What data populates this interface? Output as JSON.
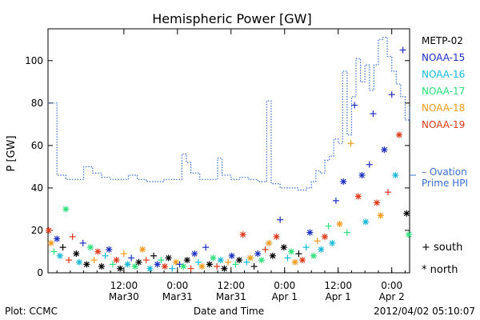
{
  "chart_data": {
    "type": "scatter",
    "title": "Hemispheric Power [GW]",
    "ylabel": "P [GW]",
    "xlabel": "Date and Time",
    "ylim": [
      0,
      115
    ],
    "yticks": [
      0,
      20,
      40,
      60,
      80,
      100
    ],
    "xlim": [
      "2012-03-29T19:00",
      "2012-04-02T04:00"
    ],
    "xticks": [
      {
        "t": "2012-03-30T12:00",
        "line1": "12:00",
        "line2": "Mar30"
      },
      {
        "t": "2012-03-31T00:00",
        "line1": "0:00",
        "line2": "Mar31"
      },
      {
        "t": "2012-03-31T12:00",
        "line1": "12:00",
        "line2": "Mar31"
      },
      {
        "t": "2012-04-01T00:00",
        "line1": "0:00",
        "line2": "Apr 1"
      },
      {
        "t": "2012-04-01T12:00",
        "line1": "12:00",
        "line2": "Apr 1"
      },
      {
        "t": "2012-04-02T00:00",
        "line1": "0:00",
        "line2": "Apr 2"
      }
    ],
    "legend": [
      {
        "name": "METP-02",
        "color": "#000000"
      },
      {
        "name": "NOAA-15",
        "color": "#1c2fbf"
      },
      {
        "name": "NOAA-16",
        "color": "#16b9d6"
      },
      {
        "name": "NOAA-17",
        "color": "#2fe07a"
      },
      {
        "name": "NOAA-18",
        "color": "#f29a1a"
      },
      {
        "name": "NOAA-19",
        "color": "#e0391a"
      }
    ],
    "ovation_label": [
      "– Ovation",
      "Prime HPI"
    ],
    "ovation_color": "#3a6fd0",
    "marker_legend": [
      {
        "symbol": "+",
        "label": "south"
      },
      {
        "symbol": "*",
        "label": "north"
      }
    ],
    "ovation_series": [
      [
        "2012-03-29T19:00",
        80
      ],
      [
        "2012-03-29T20:00",
        80
      ],
      [
        "2012-03-29T21:00",
        46
      ],
      [
        "2012-03-29T23:00",
        44
      ],
      [
        "2012-03-30T02:00",
        44
      ],
      [
        "2012-03-30T03:00",
        50
      ],
      [
        "2012-03-30T05:00",
        47
      ],
      [
        "2012-03-30T07:00",
        45
      ],
      [
        "2012-03-30T09:00",
        44
      ],
      [
        "2012-03-30T11:00",
        44
      ],
      [
        "2012-03-30T13:00",
        46
      ],
      [
        "2012-03-30T15:00",
        44
      ],
      [
        "2012-03-30T17:00",
        43
      ],
      [
        "2012-03-30T19:00",
        43
      ],
      [
        "2012-03-30T21:00",
        44
      ],
      [
        "2012-03-31T00:00",
        44
      ],
      [
        "2012-03-31T01:00",
        56
      ],
      [
        "2012-03-31T02:00",
        52
      ],
      [
        "2012-03-31T03:00",
        47
      ],
      [
        "2012-03-31T05:00",
        44
      ],
      [
        "2012-03-31T07:00",
        44
      ],
      [
        "2012-03-31T09:00",
        54
      ],
      [
        "2012-03-31T10:00",
        46
      ],
      [
        "2012-03-31T12:00",
        44
      ],
      [
        "2012-03-31T14:00",
        45
      ],
      [
        "2012-03-31T16:00",
        44
      ],
      [
        "2012-03-31T18:00",
        43
      ],
      [
        "2012-03-31T20:00",
        81
      ],
      [
        "2012-03-31T21:00",
        42
      ],
      [
        "2012-03-31T23:00",
        40
      ],
      [
        "2012-04-01T01:00",
        40
      ],
      [
        "2012-04-01T03:00",
        39
      ],
      [
        "2012-04-01T05:00",
        40
      ],
      [
        "2012-04-01T06:00",
        43
      ],
      [
        "2012-04-01T07:00",
        48
      ],
      [
        "2012-04-01T08:00",
        47
      ],
      [
        "2012-04-01T09:00",
        53
      ],
      [
        "2012-04-01T10:00",
        55
      ],
      [
        "2012-04-01T11:00",
        63
      ],
      [
        "2012-04-01T12:00",
        61
      ],
      [
        "2012-04-01T13:00",
        95
      ],
      [
        "2012-04-01T14:00",
        65
      ],
      [
        "2012-04-01T15:00",
        83
      ],
      [
        "2012-04-01T16:00",
        101
      ],
      [
        "2012-04-01T17:00",
        90
      ],
      [
        "2012-04-01T18:00",
        98
      ],
      [
        "2012-04-01T19:00",
        86
      ],
      [
        "2012-04-01T20:00",
        98
      ],
      [
        "2012-04-01T21:00",
        110
      ],
      [
        "2012-04-01T22:00",
        111
      ],
      [
        "2012-04-01T23:00",
        102
      ],
      [
        "2012-04-02T00:00",
        95
      ],
      [
        "2012-04-02T01:00",
        89
      ],
      [
        "2012-04-02T02:00",
        83
      ],
      [
        "2012-04-02T03:00",
        72
      ],
      [
        "2012-04-02T04:00",
        78
      ]
    ],
    "points": [
      [
        "2012-03-29T19:10",
        20,
        "*",
        "#e0391a"
      ],
      [
        "2012-03-29T19:40",
        14,
        "*",
        "#f29a1a"
      ],
      [
        "2012-03-29T20:20",
        10,
        "+",
        "#2fe07a"
      ],
      [
        "2012-03-29T21:00",
        16,
        "*",
        "#1c2fbf"
      ],
      [
        "2012-03-29T21:40",
        8,
        "*",
        "#16b9d6"
      ],
      [
        "2012-03-29T22:20",
        12,
        "+",
        "#000000"
      ],
      [
        "2012-03-29T23:00",
        30,
        "*",
        "#2fe07a"
      ],
      [
        "2012-03-29T23:40",
        6,
        "+",
        "#e0391a"
      ],
      [
        "2012-03-30T00:30",
        17,
        "+",
        "#e0391a"
      ],
      [
        "2012-03-30T01:20",
        9,
        "*",
        "#000000"
      ],
      [
        "2012-03-30T02:00",
        5,
        "*",
        "#16b9d6"
      ],
      [
        "2012-03-30T02:50",
        14,
        "+",
        "#1c2fbf"
      ],
      [
        "2012-03-30T03:40",
        4,
        "*",
        "#000000"
      ],
      [
        "2012-03-30T04:30",
        12,
        "*",
        "#2fe07a"
      ],
      [
        "2012-03-30T05:20",
        6,
        "+",
        "#f29a1a"
      ],
      [
        "2012-03-30T06:10",
        10,
        "*",
        "#e0391a"
      ],
      [
        "2012-03-30T07:00",
        3,
        "*",
        "#000000"
      ],
      [
        "2012-03-30T07:50",
        8,
        "+",
        "#16b9d6"
      ],
      [
        "2012-03-30T08:40",
        11,
        "*",
        "#1c2fbf"
      ],
      [
        "2012-03-30T09:30",
        4,
        "+",
        "#2fe07a"
      ],
      [
        "2012-03-30T10:20",
        6,
        "*",
        "#e0391a"
      ],
      [
        "2012-03-30T11:10",
        2,
        "*",
        "#000000"
      ],
      [
        "2012-03-30T12:00",
        9,
        "+",
        "#f29a1a"
      ],
      [
        "2012-03-30T12:50",
        4,
        "*",
        "#16b9d6"
      ],
      [
        "2012-03-30T13:40",
        7,
        "+",
        "#1c2fbf"
      ],
      [
        "2012-03-30T14:30",
        3,
        "*",
        "#2fe07a"
      ],
      [
        "2012-03-30T15:20",
        5,
        "*",
        "#000000"
      ],
      [
        "2012-03-30T16:10",
        11,
        "*",
        "#f29a1a"
      ],
      [
        "2012-03-30T17:00",
        6,
        "+",
        "#e0391a"
      ],
      [
        "2012-03-30T17:50",
        2,
        "*",
        "#16b9d6"
      ],
      [
        "2012-03-30T18:40",
        8,
        "+",
        "#000000"
      ],
      [
        "2012-03-30T19:30",
        4,
        "*",
        "#1c2fbf"
      ],
      [
        "2012-03-30T20:20",
        6,
        "+",
        "#2fe07a"
      ],
      [
        "2012-03-30T21:10",
        3,
        "*",
        "#e0391a"
      ],
      [
        "2012-03-30T22:00",
        7,
        "*",
        "#000000"
      ],
      [
        "2012-03-30T22:50",
        2,
        "+",
        "#16b9d6"
      ],
      [
        "2012-03-30T23:40",
        5,
        "*",
        "#f29a1a"
      ],
      [
        "2012-03-31T00:30",
        4,
        "+",
        "#1c2fbf"
      ],
      [
        "2012-03-31T01:20",
        3,
        "*",
        "#2fe07a"
      ],
      [
        "2012-03-31T02:10",
        6,
        "*",
        "#000000"
      ],
      [
        "2012-03-31T03:00",
        2,
        "+",
        "#e0391a"
      ],
      [
        "2012-03-31T03:50",
        9,
        "*",
        "#1c2fbf"
      ],
      [
        "2012-03-31T04:40",
        5,
        "+",
        "#16b9d6"
      ],
      [
        "2012-03-31T05:30",
        3,
        "*",
        "#f29a1a"
      ],
      [
        "2012-03-31T06:20",
        12,
        "+",
        "#1c2fbf"
      ],
      [
        "2012-03-31T07:10",
        4,
        "*",
        "#000000"
      ],
      [
        "2012-03-31T08:00",
        7,
        "*",
        "#2fe07a"
      ],
      [
        "2012-03-31T08:50",
        3,
        "+",
        "#e0391a"
      ],
      [
        "2012-03-31T09:40",
        6,
        "*",
        "#16b9d6"
      ],
      [
        "2012-03-31T10:30",
        2,
        "*",
        "#000000"
      ],
      [
        "2012-03-31T11:20",
        5,
        "+",
        "#f29a1a"
      ],
      [
        "2012-03-31T12:10",
        8,
        "*",
        "#1c2fbf"
      ],
      [
        "2012-03-31T13:00",
        4,
        "+",
        "#2fe07a"
      ],
      [
        "2012-03-31T13:50",
        6,
        "*",
        "#000000"
      ],
      [
        "2012-03-31T14:40",
        18,
        "*",
        "#e0391a"
      ],
      [
        "2012-03-31T15:30",
        5,
        "+",
        "#16b9d6"
      ],
      [
        "2012-03-31T16:20",
        7,
        "*",
        "#f29a1a"
      ],
      [
        "2012-03-31T17:10",
        3,
        "+",
        "#000000"
      ],
      [
        "2012-03-31T18:00",
        9,
        "*",
        "#1c2fbf"
      ],
      [
        "2012-03-31T18:50",
        6,
        "*",
        "#2fe07a"
      ],
      [
        "2012-03-31T19:40",
        11,
        "+",
        "#e0391a"
      ],
      [
        "2012-03-31T20:30",
        14,
        "*",
        "#f29a1a"
      ],
      [
        "2012-03-31T21:20",
        8,
        "*",
        "#000000"
      ],
      [
        "2012-03-31T22:10",
        17,
        "*",
        "#e0391a"
      ],
      [
        "2012-03-31T23:00",
        25,
        "+",
        "#1c2fbf"
      ],
      [
        "2012-03-31T23:50",
        12,
        "*",
        "#000000"
      ],
      [
        "2012-04-01T00:40",
        7,
        "+",
        "#16b9d6"
      ],
      [
        "2012-04-01T01:30",
        10,
        "*",
        "#2fe07a"
      ],
      [
        "2012-04-01T02:20",
        5,
        "*",
        "#f29a1a"
      ],
      [
        "2012-04-01T03:10",
        9,
        "+",
        "#000000"
      ],
      [
        "2012-04-01T04:00",
        6,
        "*",
        "#e0391a"
      ],
      [
        "2012-04-01T04:50",
        12,
        "+",
        "#16b9d6"
      ],
      [
        "2012-04-01T05:40",
        19,
        "*",
        "#1c2fbf"
      ],
      [
        "2012-04-01T06:30",
        8,
        "*",
        "#2fe07a"
      ],
      [
        "2012-04-01T07:20",
        15,
        "+",
        "#f29a1a"
      ],
      [
        "2012-04-01T08:10",
        11,
        "*",
        "#16b9d6"
      ],
      [
        "2012-04-01T09:00",
        17,
        "*",
        "#e0391a"
      ],
      [
        "2012-04-01T09:50",
        22,
        "+",
        "#2fe07a"
      ],
      [
        "2012-04-01T10:40",
        14,
        "*",
        "#16b9d6"
      ],
      [
        "2012-04-01T11:30",
        34,
        "+",
        "#1c2fbf"
      ],
      [
        "2012-04-01T12:20",
        23,
        "*",
        "#f29a1a"
      ],
      [
        "2012-04-01T13:10",
        43,
        "*",
        "#1c2fbf"
      ],
      [
        "2012-04-01T14:00",
        19,
        "+",
        "#2fe07a"
      ],
      [
        "2012-04-01T14:50",
        61,
        "+",
        "#f29a1a"
      ],
      [
        "2012-04-01T15:40",
        79,
        "+",
        "#1c2fbf"
      ],
      [
        "2012-04-01T16:30",
        36,
        "*",
        "#e0391a"
      ],
      [
        "2012-04-01T17:20",
        46,
        "*",
        "#1c2fbf"
      ],
      [
        "2012-04-01T18:10",
        24,
        "*",
        "#16b9d6"
      ],
      [
        "2012-04-01T19:00",
        51,
        "+",
        "#1c2fbf"
      ],
      [
        "2012-04-01T19:50",
        75,
        "+",
        "#1c2fbf"
      ],
      [
        "2012-04-01T20:40",
        33,
        "*",
        "#e0391a"
      ],
      [
        "2012-04-01T21:30",
        27,
        "*",
        "#f29a1a"
      ],
      [
        "2012-04-01T22:20",
        58,
        "*",
        "#1c2fbf"
      ],
      [
        "2012-04-01T23:10",
        38,
        "+",
        "#e0391a"
      ],
      [
        "2012-04-02T00:00",
        84,
        "+",
        "#1c2fbf"
      ],
      [
        "2012-04-02T00:50",
        46,
        "*",
        "#16b9d6"
      ],
      [
        "2012-04-02T01:40",
        65,
        "*",
        "#e0391a"
      ],
      [
        "2012-04-02T02:30",
        105,
        "+",
        "#1c2fbf"
      ],
      [
        "2012-04-02T03:20",
        28,
        "*",
        "#000000"
      ],
      [
        "2012-04-02T03:50",
        18,
        "*",
        "#2fe07a"
      ]
    ]
  },
  "footer": {
    "left": "Plot: CCMC",
    "right": "2012/04/02 05:10:07"
  }
}
